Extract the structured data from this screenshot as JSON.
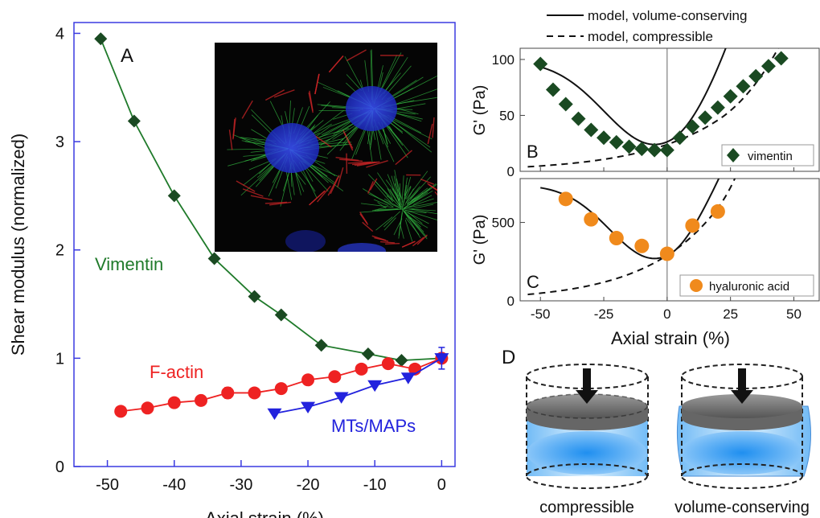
{
  "colors": {
    "vimentin": "#1f7a2a",
    "vimentin_marker": "#1a4a22",
    "factin": "#ee2222",
    "mts": "#2222dd",
    "hyaluronic": "#f08a1c",
    "axis_blue": "#3a3ae0",
    "liquid": "#3aa0f0",
    "plate": "#8a8a8a"
  },
  "chart_data": [
    {
      "id": "A",
      "type": "line",
      "panel_label": "A",
      "xlabel": "Axial strain (%)",
      "ylabel": "Shear modulus (normalized)",
      "xlim": [
        -55,
        2
      ],
      "ylim": [
        0,
        4.1
      ],
      "x_ticks": [
        -50,
        -40,
        -30,
        -20,
        -10,
        0
      ],
      "y_ticks": [
        0,
        1,
        2,
        3,
        4
      ],
      "grid": false,
      "inset": "fluorescence micrograph of cells (vimentin filaments green, actin red, nuclei blue)",
      "series": [
        {
          "name": "Vimentin",
          "marker": "diamond",
          "x": [
            -51,
            -46,
            -40,
            -34,
            -28,
            -24,
            -18,
            -11,
            -6,
            0
          ],
          "y": [
            3.95,
            3.19,
            2.5,
            1.92,
            1.57,
            1.4,
            1.12,
            1.04,
            0.98,
            1.0
          ]
        },
        {
          "name": "F-actin",
          "marker": "circle",
          "x": [
            -48,
            -44,
            -40,
            -36,
            -32,
            -28,
            -24,
            -20,
            -16,
            -12,
            -8,
            -4,
            0
          ],
          "y": [
            0.51,
            0.54,
            0.59,
            0.61,
            0.68,
            0.68,
            0.72,
            0.8,
            0.83,
            0.9,
            0.95,
            0.9,
            1.0
          ],
          "error_bar_at": [
            -32,
            0
          ]
        },
        {
          "name": "MTs/MAPs",
          "marker": "triangle-down",
          "x": [
            -25,
            -20,
            -15,
            -10,
            -5,
            0
          ],
          "y": [
            0.49,
            0.55,
            0.64,
            0.75,
            0.82,
            1.0
          ]
        }
      ]
    },
    {
      "id": "B",
      "type": "scatter",
      "panel_label": "B",
      "ylabel": "G' (Pa)",
      "xlim": [
        -58,
        60
      ],
      "ylim": [
        0,
        110
      ],
      "y_ticks": [
        0,
        50,
        100
      ],
      "legend": "bottom-right",
      "series": [
        {
          "name": "vimentin",
          "marker": "diamond",
          "x": [
            -50,
            -45,
            -40,
            -35,
            -30,
            -25,
            -20,
            -15,
            -10,
            -5,
            0,
            5,
            10,
            15,
            20,
            25,
            30,
            35,
            40,
            45
          ],
          "y": [
            96,
            73,
            60,
            47,
            37,
            30,
            26,
            22,
            20,
            19,
            19,
            30,
            40,
            48,
            57,
            67,
            76,
            85,
            94,
            101
          ]
        }
      ]
    },
    {
      "id": "C",
      "type": "scatter",
      "panel_label": "C",
      "ylabel": "G' (Pa)",
      "xlabel": "Axial strain (%)",
      "xlim": [
        -58,
        60
      ],
      "ylim": [
        0,
        780
      ],
      "x_ticks": [
        -50,
        -25,
        0,
        25,
        50
      ],
      "y_ticks": [
        0,
        500
      ],
      "legend": "bottom-right",
      "series": [
        {
          "name": "hyaluronic acid",
          "marker": "circle",
          "x": [
            -40,
            -30,
            -20,
            -10,
            0,
            10,
            20
          ],
          "y": [
            650,
            520,
            400,
            350,
            300,
            480,
            570
          ]
        }
      ]
    }
  ],
  "panel_d": {
    "label": "D",
    "left_caption": "compressible",
    "right_caption": "volume-conserving"
  },
  "model_legend": {
    "solid": "model, volume-conserving",
    "dashed": "model, compressible"
  }
}
